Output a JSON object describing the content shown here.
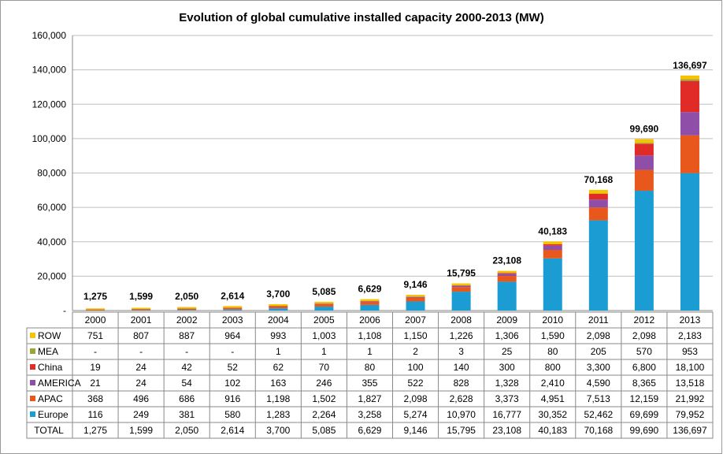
{
  "chart_data": {
    "type": "bar",
    "stacked": true,
    "title": "Evolution of global cumulative installed capacity 2000-2013 (MW)",
    "categories": [
      "2000",
      "2001",
      "2002",
      "2003",
      "2004",
      "2005",
      "2006",
      "2007",
      "2008",
      "2009",
      "2010",
      "2011",
      "2012",
      "2013"
    ],
    "ylim": [
      0,
      160000
    ],
    "y_ticks": [
      "-",
      "20,000",
      "40,000",
      "60,000",
      "80,000",
      "100,000",
      "120,000",
      "140,000",
      "160,000"
    ],
    "grid": true,
    "legend": "data-table-left",
    "series": [
      {
        "name": "Europe",
        "color": "#1b9dd3",
        "values": [
          116,
          249,
          381,
          580,
          1283,
          2264,
          3258,
          5274,
          10970,
          16777,
          30352,
          52462,
          69699,
          79952
        ],
        "labels": [
          "116",
          "249",
          "381",
          "580",
          "1,283",
          "2,264",
          "3,258",
          "5,274",
          "10,970",
          "16,777",
          "30,352",
          "52,462",
          "69,699",
          "79,952"
        ]
      },
      {
        "name": "APAC",
        "color": "#e8581c",
        "values": [
          368,
          496,
          686,
          916,
          1198,
          1502,
          1827,
          2098,
          2628,
          3373,
          4951,
          7513,
          12159,
          21992
        ],
        "labels": [
          "368",
          "496",
          "686",
          "916",
          "1,198",
          "1,502",
          "1,827",
          "2,098",
          "2,628",
          "3,373",
          "4,951",
          "7,513",
          "12,159",
          "21,992"
        ]
      },
      {
        "name": "AMERICA",
        "color": "#8f4fa8",
        "values": [
          21,
          24,
          54,
          102,
          163,
          246,
          355,
          522,
          828,
          1328,
          2410,
          4590,
          8365,
          13518
        ],
        "labels": [
          "21",
          "24",
          "54",
          "102",
          "163",
          "246",
          "355",
          "522",
          "828",
          "1,328",
          "2,410",
          "4,590",
          "8,365",
          "13,518"
        ]
      },
      {
        "name": "China",
        "color": "#e02b27",
        "values": [
          19,
          24,
          42,
          52,
          62,
          70,
          80,
          100,
          140,
          300,
          800,
          3300,
          6800,
          18100
        ],
        "labels": [
          "19",
          "24",
          "42",
          "52",
          "62",
          "70",
          "80",
          "100",
          "140",
          "300",
          "800",
          "3,300",
          "6,800",
          "18,100"
        ]
      },
      {
        "name": "MEA",
        "color": "#9aa63a",
        "values": [
          0,
          0,
          0,
          0,
          1,
          1,
          1,
          2,
          3,
          25,
          80,
          205,
          570,
          953
        ],
        "labels": [
          "-",
          "-",
          "-",
          "-",
          "1",
          "1",
          "1",
          "2",
          "3",
          "25",
          "80",
          "205",
          "570",
          "953"
        ]
      },
      {
        "name": "ROW",
        "color": "#f7c200",
        "values": [
          751,
          807,
          887,
          964,
          993,
          1003,
          1108,
          1150,
          1226,
          1306,
          1590,
          2098,
          2098,
          2183
        ],
        "labels": [
          "751",
          "807",
          "887",
          "964",
          "993",
          "1,003",
          "1,108",
          "1,150",
          "1,226",
          "1,306",
          "1,590",
          "2,098",
          "2,098",
          "2,183"
        ]
      }
    ],
    "total": {
      "name": "TOTAL",
      "values": [
        1275,
        1599,
        2050,
        2614,
        3700,
        5085,
        6629,
        9146,
        15795,
        23108,
        40183,
        70168,
        99690,
        136697
      ],
      "labels": [
        "1,275",
        "1,599",
        "2,050",
        "2,614",
        "3,700",
        "5,085",
        "6,629",
        "9,146",
        "15,795",
        "23,108",
        "40,183",
        "70,168",
        "99,690",
        "136,697"
      ]
    }
  }
}
